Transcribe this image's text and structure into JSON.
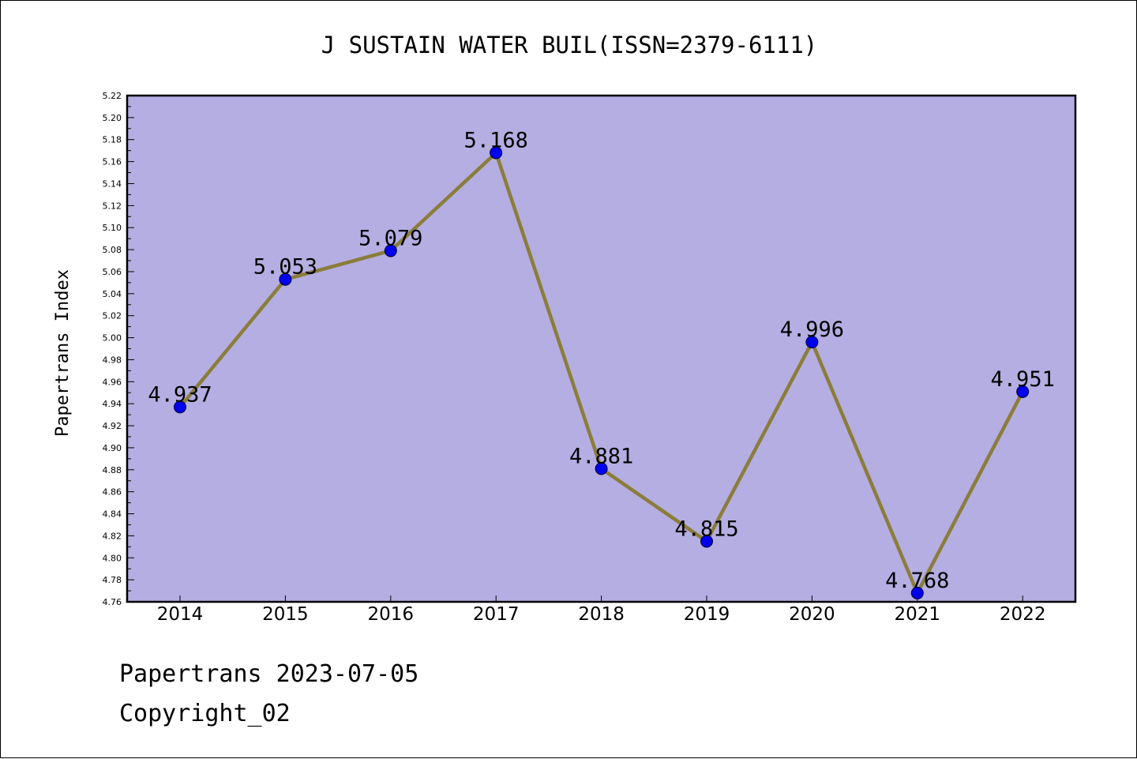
{
  "chart_data": {
    "type": "line",
    "title": "J SUSTAIN WATER BUIL(ISSN=2379-6111)",
    "xlabel": "",
    "ylabel": "Papertrans Index",
    "categories": [
      "2014",
      "2015",
      "2016",
      "2017",
      "2018",
      "2019",
      "2020",
      "2021",
      "2022"
    ],
    "values": [
      4.937,
      5.053,
      5.079,
      5.168,
      4.881,
      4.815,
      4.996,
      4.768,
      4.951
    ],
    "data_labels": [
      "4.937",
      "5.053",
      "5.079",
      "5.168",
      "4.881",
      "4.815",
      "4.996",
      "4.768",
      "4.951"
    ],
    "ylim": [
      4.76,
      5.22
    ],
    "ytick_step": 0.02,
    "ytick_decimals": 2,
    "grid": false,
    "legend": "none",
    "colors": {
      "plot_background": "#b4aee2",
      "line": "#8b7d3a",
      "marker": "#0000ee",
      "axis": "#000000"
    }
  },
  "footer": {
    "source": "Papertrans 2023-07-05",
    "copyright": "Copyright_02"
  }
}
